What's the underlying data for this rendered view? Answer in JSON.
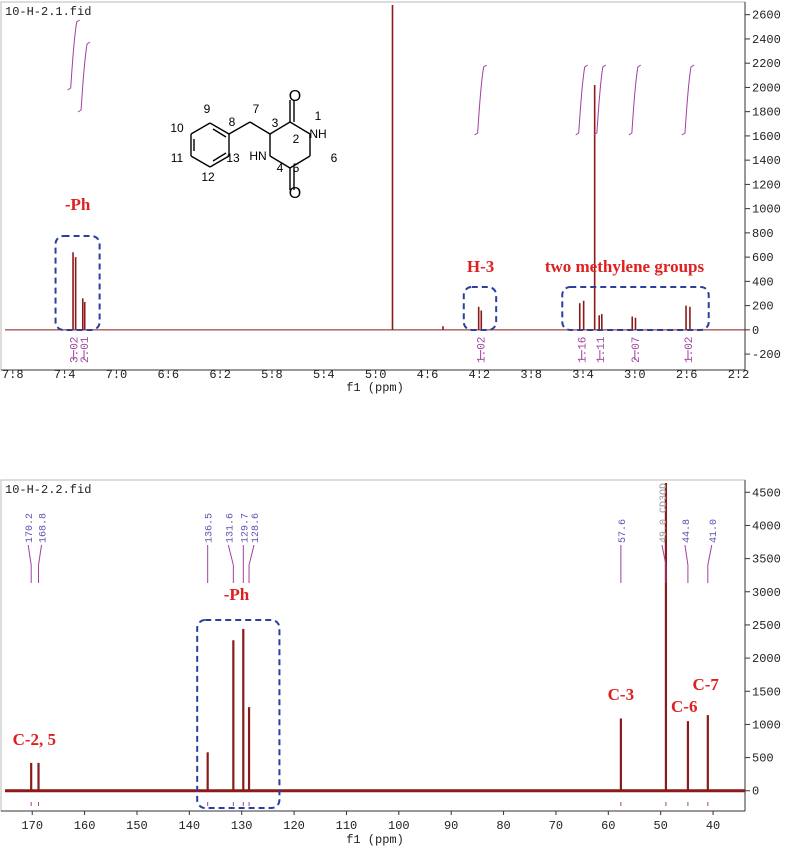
{
  "chart_data": [
    {
      "type": "spectrum",
      "title": "10-H-2.1.fid",
      "xlabel": "f1 (ppm)",
      "color": "#8b1a1a",
      "x": [
        7.335,
        7.315,
        7.26,
        7.245,
        4.87,
        4.48,
        4.205,
        4.185,
        3.425,
        3.395,
        3.31,
        3.275,
        3.255,
        3.02,
        2.995,
        2.605,
        2.575
      ],
      "values": [
        640,
        600,
        260,
        230,
        2680,
        30,
        190,
        160,
        220,
        240,
        2020,
        120,
        130,
        110,
        100,
        200,
        190
      ],
      "xlim": [
        7.86,
        2.15
      ],
      "xticks": [
        {
          "value": 7.8,
          "label": "7.8"
        },
        7.4,
        {
          "value": 7,
          "label": "7.0"
        },
        6.6,
        6.2,
        5.8,
        5.4,
        {
          "value": 5,
          "label": "5.0"
        },
        4.6,
        4.2,
        3.8,
        3.4,
        {
          "value": 3,
          "label": "3.0"
        },
        2.6,
        2.2
      ],
      "ylim": [
        -290,
        2680
      ],
      "yticks": [
        -200,
        0,
        200,
        400,
        600,
        800,
        1000,
        1200,
        1400,
        1600,
        1800,
        2000,
        2200,
        2400,
        2600
      ],
      "integrals": {
        "x": [
          7.33,
          7.25,
          4.19,
          3.41,
          3.27,
          3.0,
          2.59
        ],
        "values": [
          3.02,
          2.01,
          1.02,
          1.16,
          1.11,
          2.07,
          1.02
        ]
      },
      "annotations": [
        "-Ph",
        "H-3",
        "two methylene groups"
      ]
    },
    {
      "type": "spectrum",
      "title": "10-H-2.2.fid",
      "xlabel": "f1 (ppm)",
      "color": "#8b1a1a",
      "x": [
        170.2,
        168.8,
        136.5,
        131.6,
        129.7,
        128.6,
        57.6,
        49.0,
        44.8,
        41.0
      ],
      "values": [
        420,
        420,
        580,
        2270,
        2440,
        1260,
        1090,
        4640,
        1050,
        1140
      ],
      "peak_labels": [
        "170.2",
        "168.8",
        "136.5",
        "131.6",
        "129.7",
        "128.6",
        "57.6",
        "49.0 CD3OD",
        "44.8",
        "41.0"
      ],
      "xlim": [
        175.2,
        33.9
      ],
      "xticks": [
        170,
        160,
        150,
        140,
        130,
        120,
        110,
        100,
        90,
        80,
        70,
        60,
        50,
        40
      ],
      "ylim": [
        -230,
        4640
      ],
      "yticks": [
        0,
        500,
        1000,
        1500,
        2000,
        2500,
        3000,
        3500,
        4000,
        4500
      ],
      "annotations": [
        "-Ph",
        "C-2, 5",
        "C-3",
        "C-6",
        "C-7"
      ]
    }
  ],
  "structure": {
    "labels": [
      "1",
      "2",
      "3",
      "4",
      "5",
      "6",
      "7",
      "8",
      "9",
      "10",
      "11",
      "12",
      "13",
      "NH",
      "HN",
      "O",
      "O"
    ]
  }
}
